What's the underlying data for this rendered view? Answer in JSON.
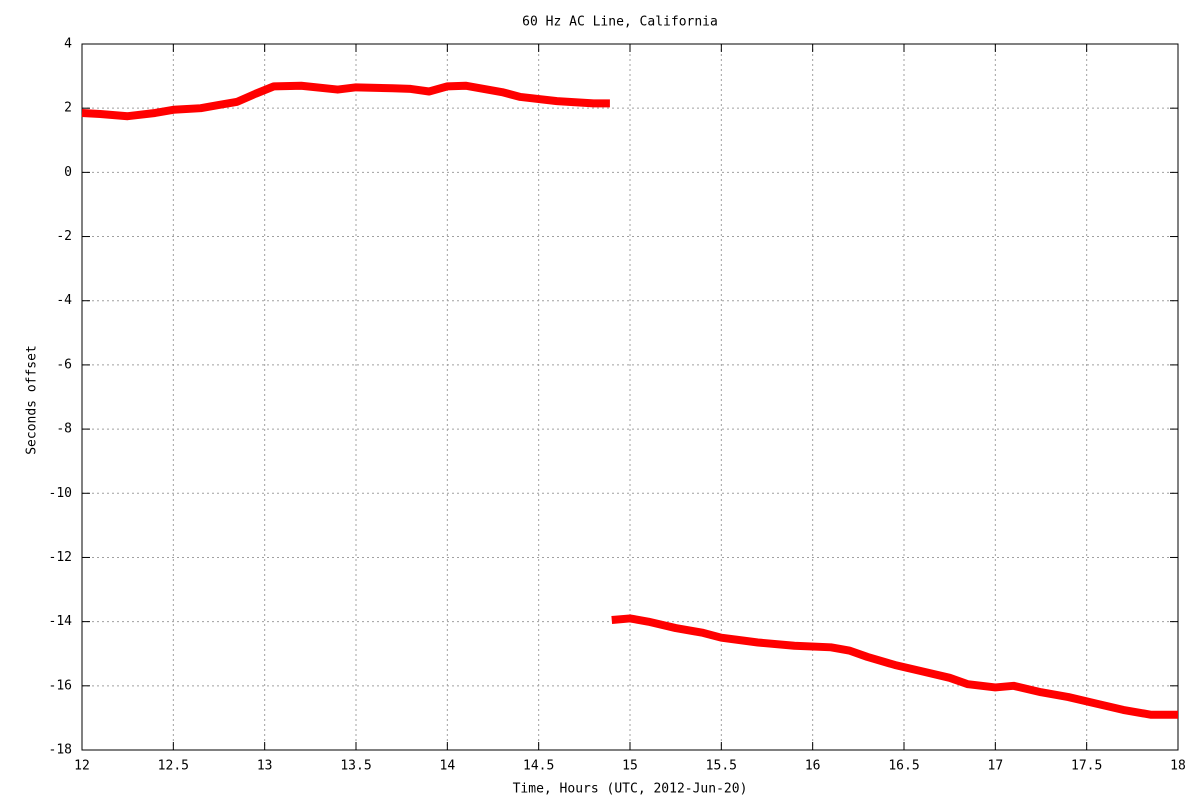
{
  "chart_data": {
    "type": "line",
    "title": "60 Hz AC Line, California",
    "x_label": "Time, Hours (UTC, 2012-Jun-20)",
    "y_label": "Seconds offset",
    "x": [
      12,
      12.1,
      12.25,
      12.4,
      12.5,
      12.65,
      12.75,
      12.85,
      12.95,
      13.05,
      13.2,
      13.4,
      13.5,
      13.7,
      13.8,
      13.9,
      14.0,
      14.1,
      14.3,
      14.4,
      14.6,
      14.8,
      14.89,
      14.895,
      14.9,
      15.0,
      15.1,
      15.25,
      15.4,
      15.5,
      15.7,
      15.9,
      16.1,
      16.2,
      16.3,
      16.45,
      16.6,
      16.75,
      16.85,
      17.0,
      17.1,
      17.25,
      17.4,
      17.55,
      17.7,
      17.85,
      18.0
    ],
    "series": [
      {
        "color": "#ff0000",
        "values": [
          1.85,
          1.82,
          1.75,
          1.85,
          1.95,
          2.0,
          2.1,
          2.2,
          2.45,
          2.68,
          2.7,
          2.58,
          2.65,
          2.62,
          2.6,
          2.52,
          2.68,
          2.7,
          2.5,
          2.35,
          2.22,
          2.15,
          2.15,
          null,
          -13.95,
          -13.9,
          -14.0,
          -14.2,
          -14.35,
          -14.5,
          -14.65,
          -14.75,
          -14.8,
          -14.9,
          -15.1,
          -15.35,
          -15.55,
          -15.75,
          -15.95,
          -16.05,
          -16.0,
          -16.2,
          -16.35,
          -16.55,
          -16.75,
          -16.9,
          -16.9
        ]
      }
    ],
    "xlim": [
      12,
      18
    ],
    "ylim": [
      -18,
      4
    ],
    "xticks": [
      12,
      12.5,
      13,
      13.5,
      14,
      14.5,
      15,
      15.5,
      16,
      16.5,
      17,
      17.5,
      18
    ],
    "yticks": [
      -18,
      -16,
      -14,
      -12,
      -10,
      -8,
      -6,
      -4,
      -2,
      0,
      2,
      4
    ],
    "grid": true
  }
}
